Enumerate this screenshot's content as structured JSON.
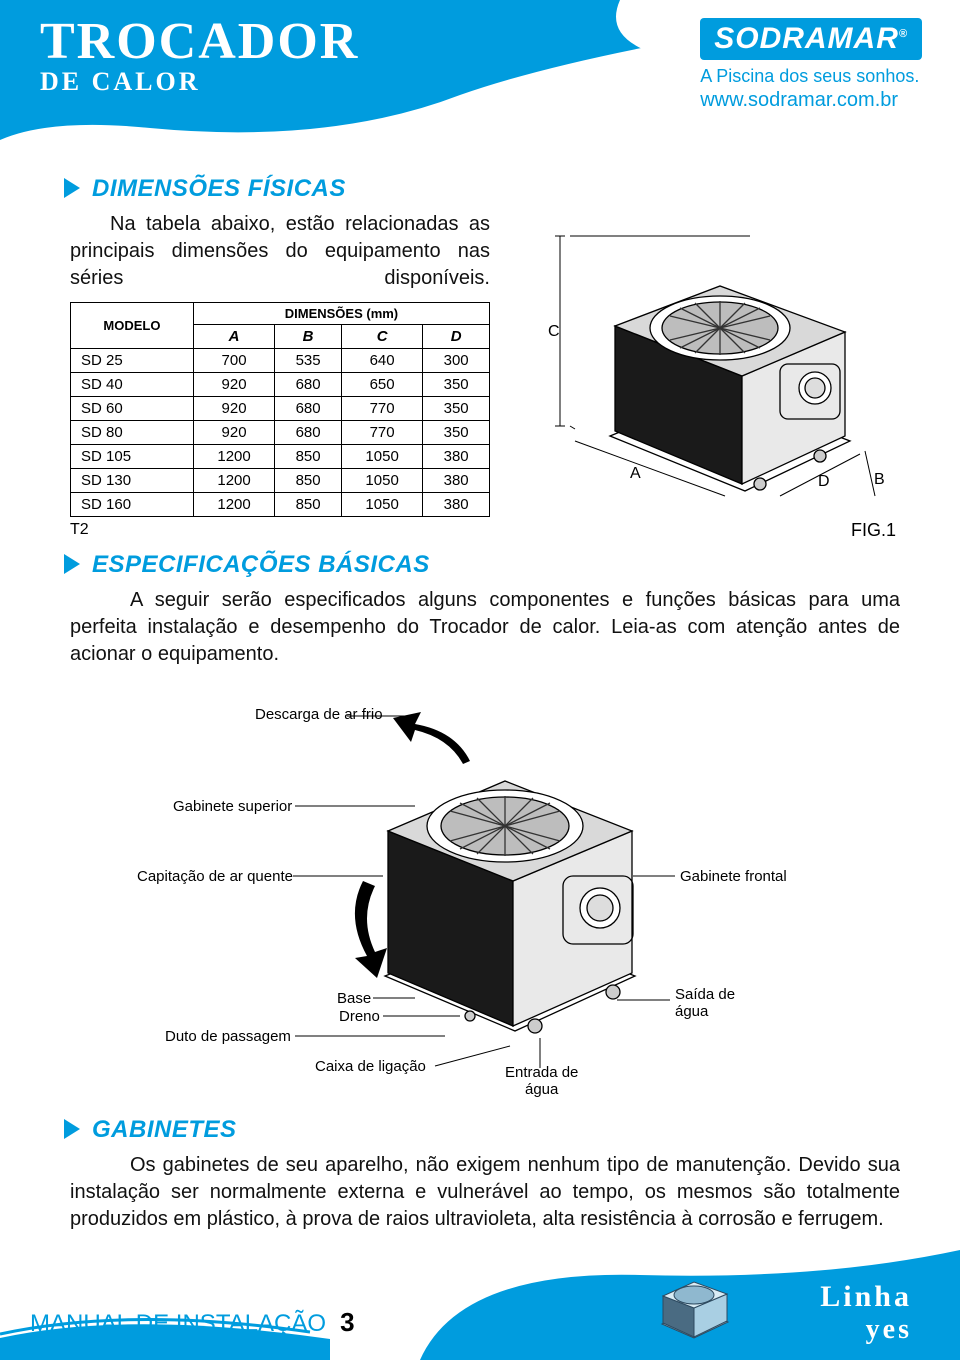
{
  "colors": {
    "brand_blue": "#009cde",
    "white": "#ffffff",
    "black": "#000000",
    "grid": "#000000"
  },
  "header": {
    "title_line1": "Trocador",
    "title_line2": "De calor",
    "brand_name": "SODRAMAR",
    "reg_mark": "®",
    "tagline": "A Piscina dos seus sonhos.",
    "url": "www.sodramar.com.br"
  },
  "sections": {
    "dim": {
      "heading": "DIMENSÕES FÍSICAS",
      "intro": "Na tabela abaixo, estão relacionadas as principais dimensões do equipamento nas séries disponíveis.",
      "table": {
        "caption_left": "T2",
        "header_group": "DIMENSÕES (mm)",
        "model_header": "MODELO",
        "columns": [
          "A",
          "B",
          "C",
          "D"
        ],
        "rows": [
          {
            "model": "SD 25",
            "vals": [
              "700",
              "535",
              "640",
              "300"
            ]
          },
          {
            "model": "SD 40",
            "vals": [
              "920",
              "680",
              "650",
              "350"
            ]
          },
          {
            "model": "SD 60",
            "vals": [
              "920",
              "680",
              "770",
              "350"
            ]
          },
          {
            "model": "SD 80",
            "vals": [
              "920",
              "680",
              "770",
              "350"
            ]
          },
          {
            "model": "SD 105",
            "vals": [
              "1200",
              "850",
              "1050",
              "380"
            ]
          },
          {
            "model": "SD 130",
            "vals": [
              "1200",
              "850",
              "1050",
              "380"
            ]
          },
          {
            "model": "SD 160",
            "vals": [
              "1200",
              "850",
              "1050",
              "380"
            ]
          }
        ]
      },
      "fig_caption": "FIG.1",
      "fig_dim_labels": {
        "A": "A",
        "B": "B",
        "C": "C",
        "D": "D"
      }
    },
    "spec": {
      "heading": "ESPECIFICAÇÕES BÁSICAS",
      "intro": "A seguir serão especificados alguns componentes e funções básicas para uma perfeita instalação e desempenho do Trocador de calor. Leia-as com atenção antes de acionar o equipamento.",
      "annot": {
        "descarga": "Descarga de ar frio",
        "gab_sup": "Gabinete superior",
        "capitacao": "Capitação de ar quente",
        "gab_frontal": "Gabinete frontal",
        "base": "Base",
        "dreno": "Dreno",
        "duto": "Duto de passagem",
        "caixa": "Caixa de ligação",
        "entrada": "Entrada de água",
        "saida": "Saída de água"
      }
    },
    "gab": {
      "heading": "GABINETES",
      "body": "Os gabinetes de seu aparelho, não exigem nenhum tipo de manutenção. Devido sua instalação ser normalmente externa e vulnerável ao tempo, os mesmos são totalmente produzidos em plástico, à prova de raios ultravioleta, alta resistência à corrosão e ferrugem."
    }
  },
  "footer": {
    "manual": "MANUAL DE INSTALAÇÃO",
    "page": "3",
    "line1": "Linha",
    "line2": "yes"
  }
}
